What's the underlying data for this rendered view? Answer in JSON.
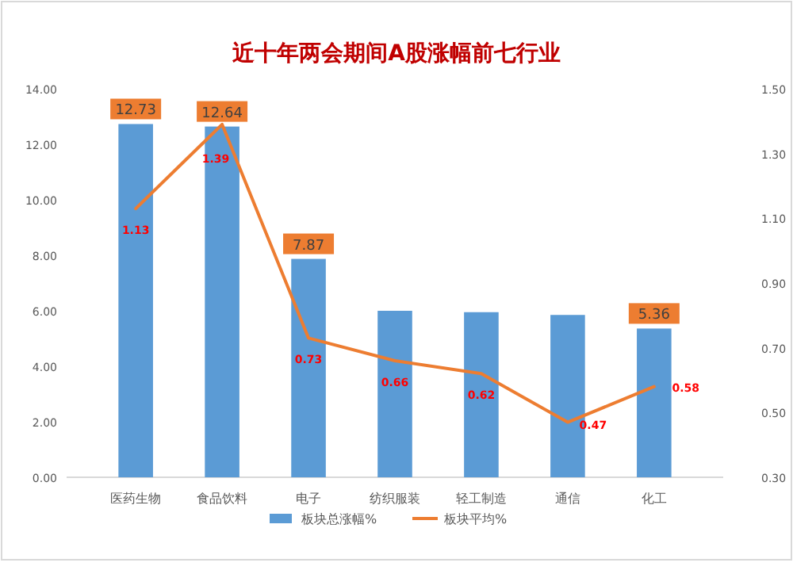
{
  "chart_data": {
    "type": "bar",
    "title": "近十年两会期间A股涨幅前七行业",
    "categories": [
      "医药生物",
      "食品饮料",
      "电子",
      "纺织服装",
      "轻工制造",
      "通信",
      "化工"
    ],
    "series": [
      {
        "name": "板块总涨幅%",
        "color": "#5b9bd5",
        "values": [
          12.73,
          12.64,
          7.87,
          6.0,
          5.95,
          5.85,
          5.36
        ],
        "value_labels": [
          "12.73",
          "12.64",
          "7.87",
          null,
          null,
          null,
          "5.36"
        ]
      },
      {
        "name": "板块平均%",
        "type": "line",
        "axis": "y2",
        "color": "#ed7d31",
        "values": [
          1.13,
          1.39,
          0.73,
          0.66,
          0.62,
          0.47,
          0.58
        ],
        "value_labels": [
          "1.13",
          "1.39",
          "0.73",
          "0.66",
          "0.62",
          "0.47",
          "0.58"
        ]
      }
    ],
    "ylim": [
      0,
      14
    ],
    "yticks": [
      {
        "value": 0,
        "label": "0.00"
      },
      {
        "value": 2,
        "label": "2.00"
      },
      {
        "value": 4,
        "label": "4.00"
      },
      {
        "value": 6,
        "label": "6.00"
      },
      {
        "value": 8,
        "label": "8.00"
      },
      {
        "value": 10,
        "label": "10.00"
      },
      {
        "value": 12,
        "label": "12.00"
      },
      {
        "value": 14,
        "label": "14.00"
      }
    ],
    "y2lim": [
      0.3,
      1.5
    ],
    "y2ticks": [
      {
        "value": 0.3,
        "label": "0.30"
      },
      {
        "value": 0.5,
        "label": "0.50"
      },
      {
        "value": 0.7,
        "label": "0.70"
      },
      {
        "value": 0.9,
        "label": "0.90"
      },
      {
        "value": 1.1,
        "label": "1.10"
      },
      {
        "value": 1.3,
        "label": "1.30"
      },
      {
        "value": 1.5,
        "label": "1.50"
      }
    ],
    "legend": "bottom",
    "grid": false
  }
}
